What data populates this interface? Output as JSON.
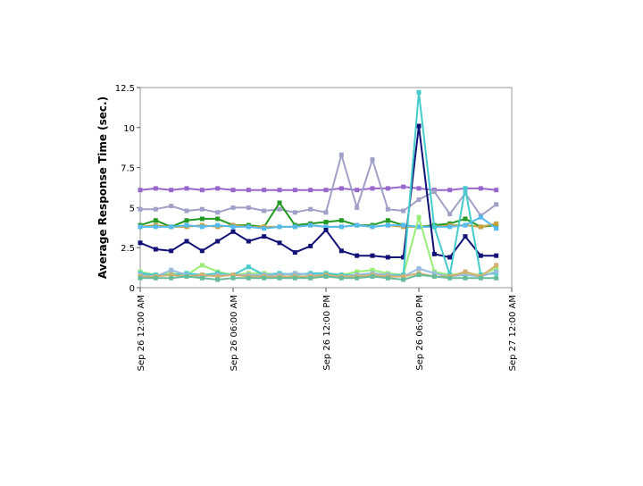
{
  "chart_data": {
    "type": "line",
    "title": "",
    "ylabel": "Average Response Time (sec.)",
    "xlabel": "",
    "ylim": [
      0,
      12.5
    ],
    "yticks": [
      0,
      2.5,
      5,
      7.5,
      10,
      12.5
    ],
    "ytick_labels": [
      "0",
      "2.5",
      "5",
      "7.5",
      "10",
      "12.5"
    ],
    "xtick_labels": [
      "Sep 26 12:00 AM",
      "Sep 26 06:00 AM",
      "Sep 26 12:00 PM",
      "Sep 26 06:00 PM",
      "Sep 27 12:00 AM"
    ],
    "xtick_hours": [
      0,
      6,
      12,
      18,
      24
    ],
    "x_hours": [
      0,
      1,
      2,
      3,
      4,
      5,
      6,
      7,
      8,
      9,
      10,
      11,
      12,
      13,
      14,
      15,
      16,
      17,
      18,
      19,
      20,
      21,
      22,
      23
    ],
    "grid": false,
    "legend": "none",
    "series": [
      {
        "color": "#9966cc",
        "values": [
          6.1,
          6.2,
          6.1,
          6.2,
          6.1,
          6.2,
          6.1,
          6.1,
          6.1,
          6.1,
          6.1,
          6.1,
          6.1,
          6.2,
          6.1,
          6.2,
          6.2,
          6.3,
          6.2,
          6.1,
          6.1,
          6.2,
          6.2,
          6.1
        ]
      },
      {
        "color": "#a0a0c8",
        "values": [
          4.9,
          4.9,
          5.1,
          4.8,
          4.9,
          4.7,
          5.0,
          5.0,
          4.8,
          4.9,
          4.7,
          4.9,
          4.7,
          8.3,
          5.0,
          8.0,
          4.9,
          4.8,
          5.5,
          6.0,
          4.6,
          5.9,
          4.5,
          5.2
        ]
      },
      {
        "color": "#229922",
        "values": [
          3.9,
          4.2,
          3.8,
          4.2,
          4.3,
          4.3,
          3.9,
          3.9,
          3.8,
          5.3,
          3.9,
          4.0,
          4.1,
          4.2,
          3.9,
          3.9,
          4.2,
          3.9,
          3.8,
          3.9,
          4.0,
          4.3,
          3.8,
          3.9
        ]
      },
      {
        "color": "#c8a040",
        "values": [
          3.8,
          3.9,
          3.8,
          3.8,
          3.9,
          3.8,
          3.9,
          3.8,
          3.8,
          3.8,
          3.8,
          3.9,
          3.8,
          3.8,
          3.9,
          3.8,
          3.9,
          3.8,
          3.8,
          3.8,
          3.9,
          3.9,
          3.8,
          4.0
        ]
      },
      {
        "color": "#55bbee",
        "values": [
          3.8,
          3.8,
          3.8,
          3.9,
          3.8,
          3.9,
          3.8,
          3.8,
          3.7,
          3.8,
          3.8,
          3.9,
          3.8,
          3.8,
          3.9,
          3.8,
          3.9,
          3.9,
          3.8,
          3.8,
          3.8,
          3.9,
          4.4,
          3.7
        ]
      },
      {
        "color": "#111177",
        "values": [
          2.8,
          2.4,
          2.3,
          2.9,
          2.3,
          2.9,
          3.5,
          2.9,
          3.2,
          2.8,
          2.2,
          2.6,
          3.6,
          2.3,
          2.0,
          2.0,
          1.9,
          1.9,
          10.1,
          2.1,
          1.9,
          3.2,
          2.0,
          2.0
        ]
      },
      {
        "color": "#99ee77",
        "values": [
          1.0,
          0.8,
          0.9,
          0.8,
          1.4,
          1.0,
          0.8,
          0.9,
          0.9,
          0.8,
          0.9,
          0.8,
          0.9,
          0.8,
          1.0,
          1.1,
          0.9,
          0.8,
          4.4,
          1.0,
          0.8,
          0.9,
          0.8,
          1.2
        ]
      },
      {
        "color": "#44cccc",
        "values": [
          0.9,
          0.8,
          0.8,
          0.9,
          0.8,
          0.9,
          0.8,
          1.3,
          0.8,
          0.9,
          0.8,
          0.9,
          0.9,
          0.8,
          0.8,
          0.9,
          0.8,
          0.8,
          12.2,
          3.8,
          0.8,
          6.2,
          0.8,
          0.9
        ]
      },
      {
        "color": "#99bbdd",
        "values": [
          0.8,
          0.7,
          1.1,
          0.8,
          0.7,
          0.8,
          0.8,
          0.8,
          0.8,
          0.8,
          0.9,
          0.8,
          0.8,
          0.7,
          0.8,
          0.9,
          0.8,
          0.7,
          1.2,
          0.9,
          0.7,
          0.8,
          0.7,
          1.0
        ]
      },
      {
        "color": "#d4b070",
        "values": [
          0.7,
          0.7,
          0.8,
          0.7,
          0.8,
          0.7,
          0.8,
          0.7,
          0.7,
          0.7,
          0.7,
          0.7,
          0.8,
          0.7,
          0.7,
          0.8,
          0.7,
          0.7,
          0.9,
          0.7,
          0.7,
          1.0,
          0.7,
          1.4
        ]
      },
      {
        "color": "#66bb99",
        "values": [
          0.6,
          0.6,
          0.6,
          0.7,
          0.6,
          0.5,
          0.6,
          0.6,
          0.6,
          0.6,
          0.6,
          0.6,
          0.7,
          0.6,
          0.6,
          0.7,
          0.6,
          0.5,
          0.8,
          0.7,
          0.6,
          0.6,
          0.6,
          0.6
        ]
      }
    ]
  }
}
